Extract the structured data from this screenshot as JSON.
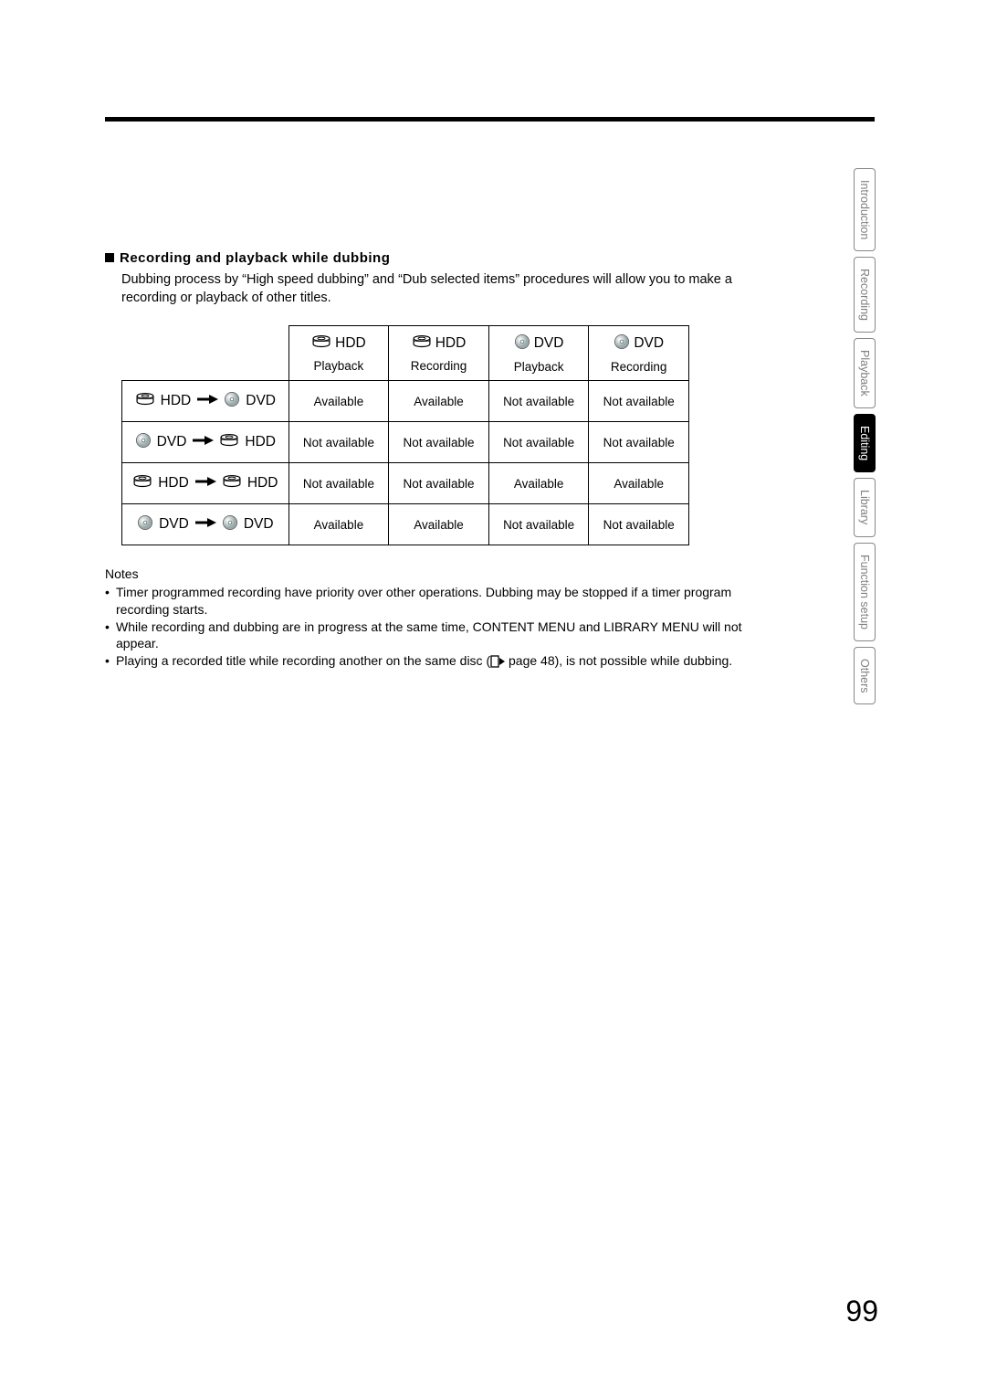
{
  "section": {
    "heading": "Recording and playback while dubbing",
    "description": "Dubbing process by “High speed dubbing” and “Dub selected items” procedures will allow you to make a recording or playback of other titles."
  },
  "tabs": {
    "items": [
      "Introduction",
      "Recording",
      "Playback",
      "Editing",
      "Library",
      "Function setup",
      "Others"
    ],
    "active_index": 3
  },
  "table": {
    "columns": [
      {
        "media": "HDD",
        "icon": "hdd",
        "sub": "Playback"
      },
      {
        "media": "HDD",
        "icon": "hdd",
        "sub": "Recording"
      },
      {
        "media": "DVD",
        "icon": "dvd",
        "sub": "Playback"
      },
      {
        "media": "DVD",
        "icon": "dvd",
        "sub": "Recording"
      }
    ],
    "rows": [
      {
        "from": {
          "label": "HDD",
          "icon": "hdd"
        },
        "to": {
          "label": "DVD",
          "icon": "dvd"
        },
        "cells": [
          "Available",
          "Available",
          "Not available",
          "Not available"
        ]
      },
      {
        "from": {
          "label": "DVD",
          "icon": "dvd"
        },
        "to": {
          "label": "HDD",
          "icon": "hdd"
        },
        "cells": [
          "Not available",
          "Not available",
          "Not available",
          "Not available"
        ]
      },
      {
        "from": {
          "label": "HDD",
          "icon": "hdd"
        },
        "to": {
          "label": "HDD",
          "icon": "hdd"
        },
        "cells": [
          "Not available",
          "Not available",
          "Available",
          "Available"
        ]
      },
      {
        "from": {
          "label": "DVD",
          "icon": "dvd"
        },
        "to": {
          "label": "DVD",
          "icon": "dvd"
        },
        "cells": [
          "Available",
          "Available",
          "Not available",
          "Not available"
        ]
      }
    ]
  },
  "notes": {
    "heading": "Notes",
    "items": [
      "Timer programmed recording have priority over other operations. Dubbing may be stopped if a timer program recording starts.",
      "While recording and dubbing are in progress at the same time, CONTENT MENU and LIBRARY MENU will not appear.",
      {
        "pre": "Playing a recorded title while recording another on the same disc (",
        "page_ref": " page 48",
        "post": "), is not possible while dubbing."
      }
    ]
  },
  "page_number": "99"
}
